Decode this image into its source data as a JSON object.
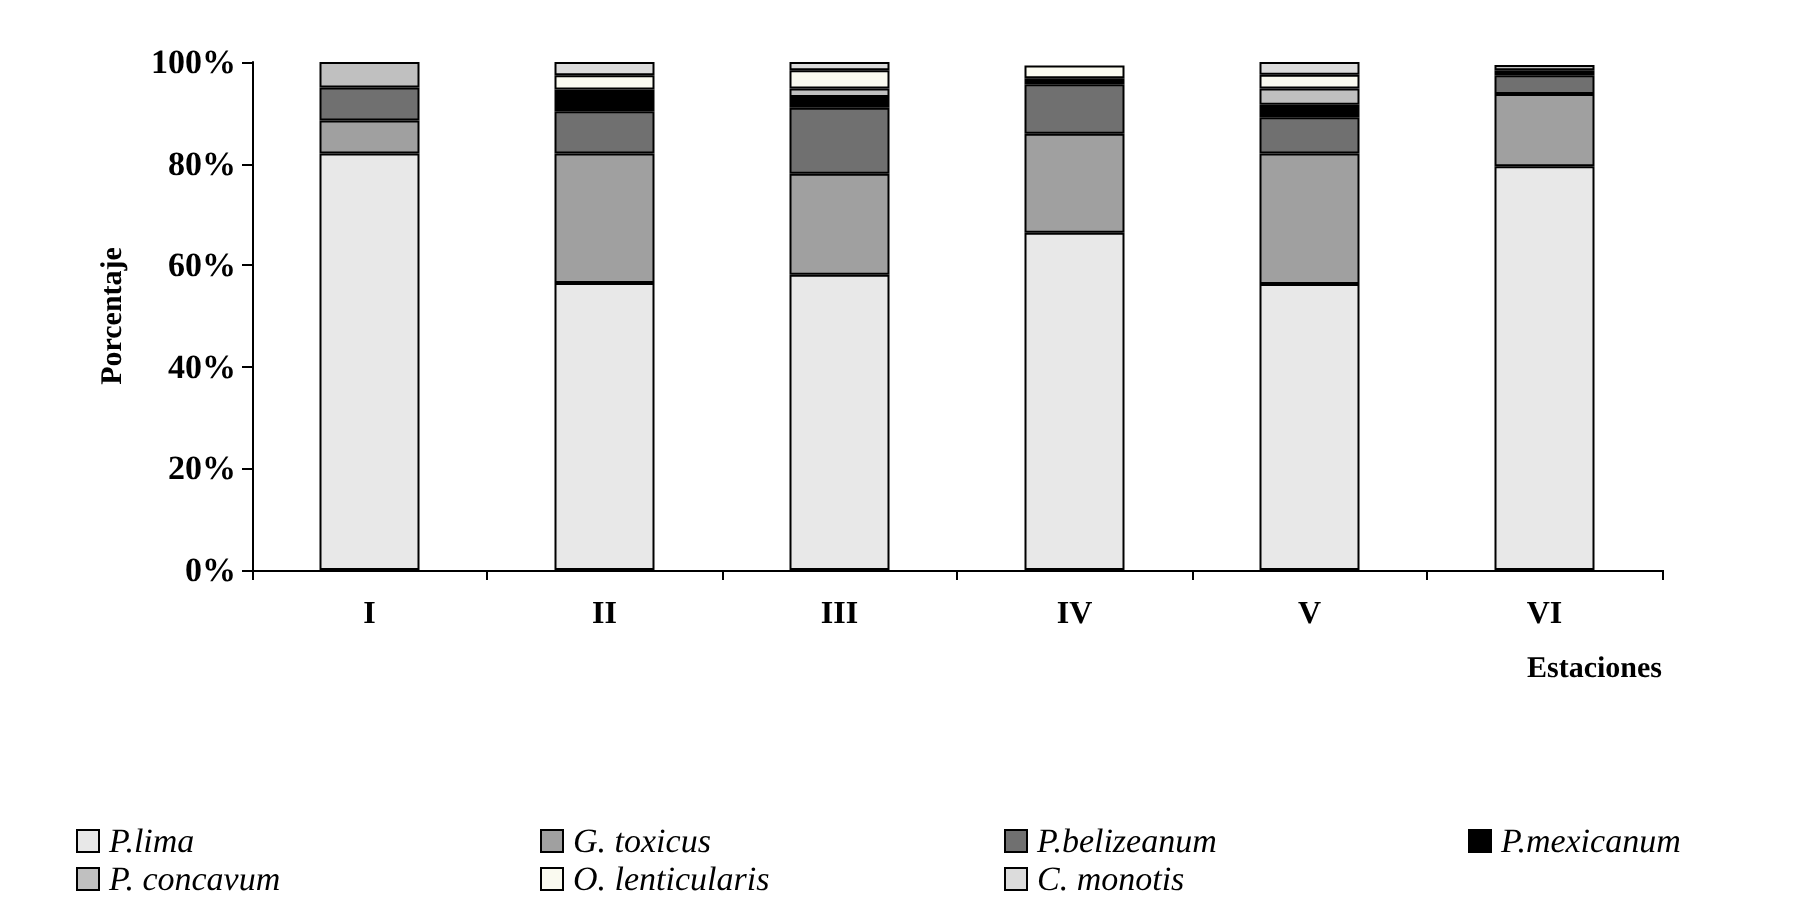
{
  "chart_data": {
    "type": "bar",
    "stacked": true,
    "xlabel": "Estaciones",
    "ylabel": "Porcentaje",
    "categories": [
      "I",
      "II",
      "III",
      "IV",
      "V",
      "VI"
    ],
    "series": [
      {
        "name": "P.lima",
        "color": "#e8e8e8",
        "values": [
          82,
          56.5,
          58.1,
          66.4,
          56.3,
          79.5
        ]
      },
      {
        "name": "G. toxicus",
        "color": "#a0a0a0",
        "values": [
          6.5,
          25.5,
          19.9,
          19.5,
          25.7,
          14.2
        ]
      },
      {
        "name": "P.belizeanum",
        "color": "#707070",
        "values": [
          6.5,
          8.3,
          13,
          9.7,
          7.1,
          3.7
        ]
      },
      {
        "name": "P.mexicanum",
        "color": "#000000",
        "values": [
          null,
          4.3,
          2.1,
          1.2,
          2.5,
          1
        ]
      },
      {
        "name": "P. concavum",
        "color": "#c0c0c0",
        "values": [
          5,
          null,
          1.7,
          null,
          3.2,
          1
        ]
      },
      {
        "name": "O. lenticularis",
        "color": "#fafaf0",
        "values": [
          null,
          2.8,
          3.6,
          2.5,
          2.7,
          null
        ]
      },
      {
        "name": "C. monotis",
        "color": "#dcdcdc",
        "values": [
          null,
          2.6,
          1.6,
          null,
          2.5,
          null
        ]
      }
    ],
    "ylim": [
      0,
      100
    ],
    "yticks": [
      {
        "value": 0,
        "label": "0%"
      },
      {
        "value": 20,
        "label": "20%"
      },
      {
        "value": 40,
        "label": "40%"
      },
      {
        "value": 60,
        "label": "60%"
      },
      {
        "value": 80,
        "label": "80%"
      },
      {
        "value": 100,
        "label": "100%"
      }
    ],
    "grid": false,
    "legend": "bottom"
  }
}
